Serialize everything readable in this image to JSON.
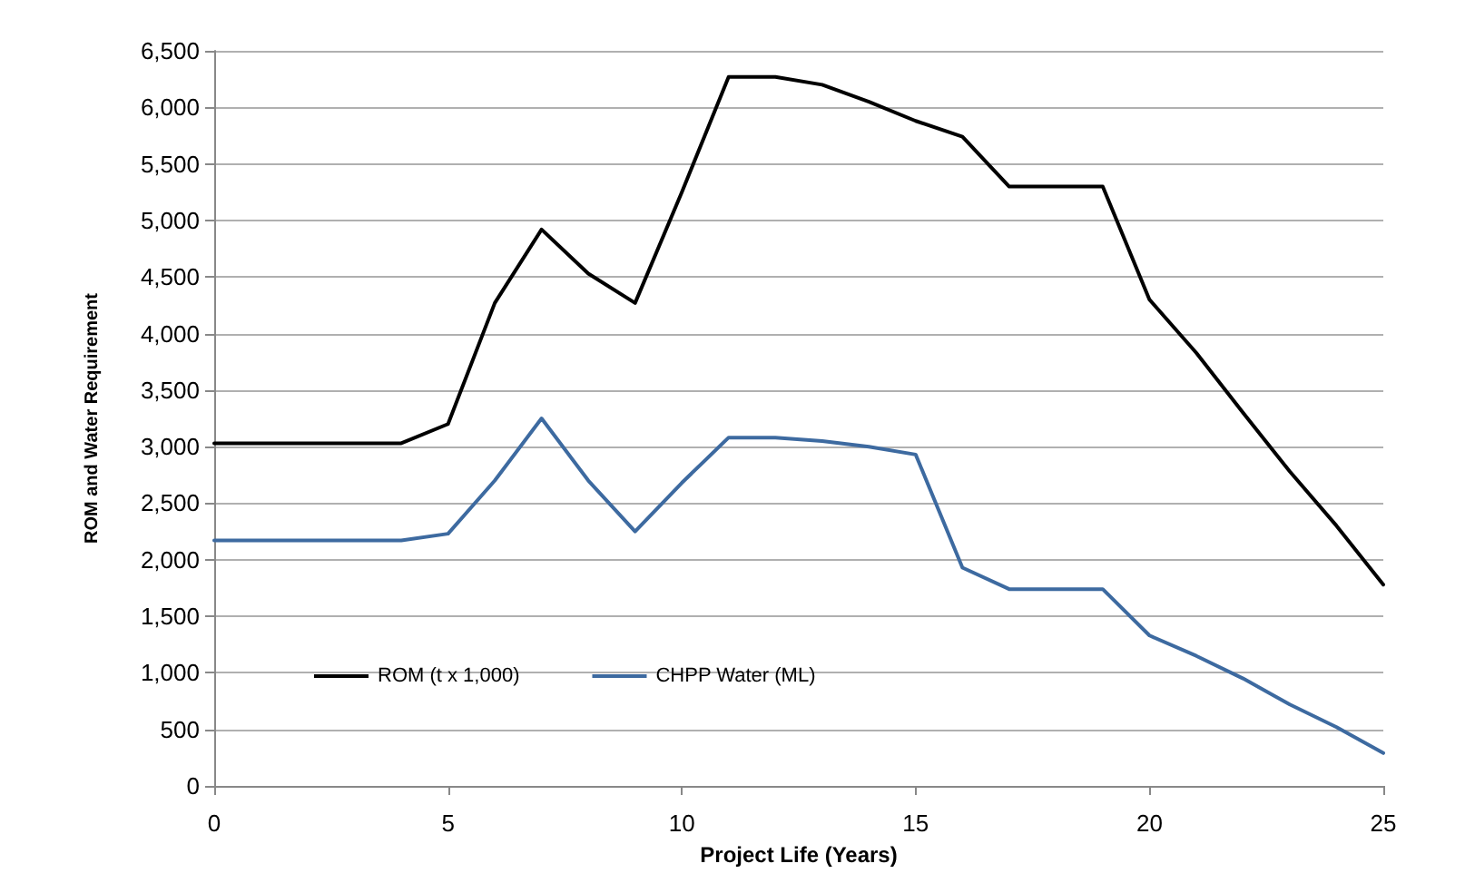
{
  "chart_data": {
    "type": "line",
    "xlabel": "Project Life (Years)",
    "ylabel": "ROM and Water Requirement",
    "x": [
      0,
      1,
      2,
      3,
      4,
      5,
      6,
      7,
      8,
      9,
      10,
      11,
      12,
      13,
      14,
      15,
      16,
      17,
      18,
      19,
      20,
      21,
      22,
      23,
      24,
      25
    ],
    "series": [
      {
        "name": "ROM (t x 1,000)",
        "color": "#000000",
        "values": [
          3030,
          3030,
          3030,
          3030,
          3030,
          3200,
          4270,
          4920,
          4530,
          4270,
          5250,
          6270,
          6270,
          6200,
          6050,
          5880,
          5740,
          5300,
          5300,
          5300,
          4300,
          3830,
          3300,
          2780,
          2300,
          1780
        ]
      },
      {
        "name": "CHPP Water (ML)",
        "color": "#3d6aa0",
        "values": [
          2170,
          2170,
          2170,
          2170,
          2170,
          2230,
          2700,
          3250,
          2700,
          2250,
          2680,
          3080,
          3080,
          3050,
          3000,
          2930,
          1930,
          1740,
          1740,
          1740,
          1330,
          1150,
          950,
          720,
          520,
          290
        ]
      }
    ],
    "xlim": [
      0,
      25
    ],
    "xticks": [
      0,
      5,
      10,
      15,
      20,
      25
    ],
    "ylim": [
      0,
      6500
    ],
    "yticks": [
      {
        "value": 0,
        "label": "0"
      },
      {
        "value": 500,
        "label": "500"
      },
      {
        "value": 1000,
        "label": "1,000"
      },
      {
        "value": 1500,
        "label": "1,500"
      },
      {
        "value": 2000,
        "label": "2,000"
      },
      {
        "value": 2500,
        "label": "2,500"
      },
      {
        "value": 3000,
        "label": "3,000"
      },
      {
        "value": 3500,
        "label": "3,500"
      },
      {
        "value": 4000,
        "label": "4,000"
      },
      {
        "value": 4500,
        "label": "4,500"
      },
      {
        "value": 5000,
        "label": "5,000"
      },
      {
        "value": 5500,
        "label": "5,500"
      },
      {
        "value": 6000,
        "label": "6,000"
      },
      {
        "value": 6500,
        "label": "6,500"
      }
    ],
    "grid": "y",
    "legend": "bottom left",
    "marker": "none",
    "line_style": "solid"
  }
}
